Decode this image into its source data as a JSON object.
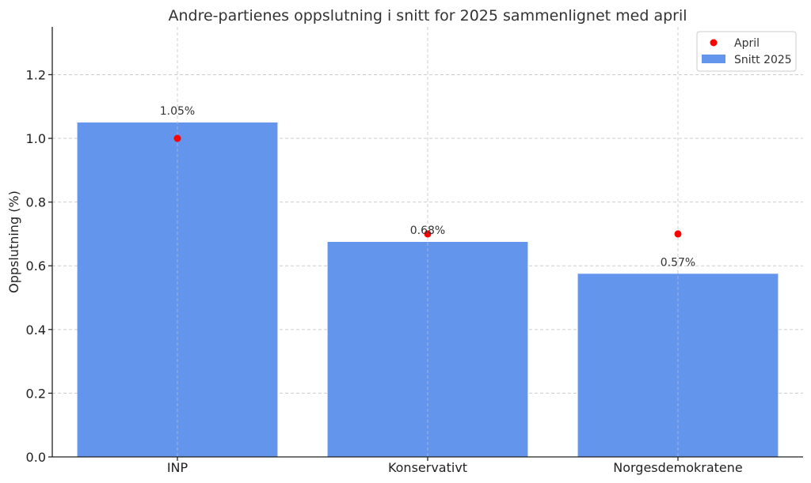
{
  "chart_data": {
    "type": "bar",
    "title": "Andre-partienes oppslutning i snitt for 2025 sammenlignet med april",
    "xlabel": "",
    "ylabel": "Oppslutning (%)",
    "ylim": [
      0,
      1.35
    ],
    "yticks": [
      0.0,
      0.2,
      0.4,
      0.6,
      0.8,
      1.0,
      1.2
    ],
    "ytick_labels": [
      "0.0",
      "0.2",
      "0.4",
      "0.6",
      "0.8",
      "1.0",
      "1.2"
    ],
    "categories": [
      "INP",
      "Konservativt",
      "Norgesdemokratene"
    ],
    "grid": true,
    "legend_position": "top-right",
    "series": [
      {
        "name": "Snitt 2025",
        "kind": "bar",
        "color": "#6495ED",
        "values": [
          1.05,
          0.675,
          0.575
        ],
        "labels": [
          "1.05%",
          "0.68%",
          "0.57%"
        ]
      },
      {
        "name": "April",
        "kind": "point",
        "color": "#FF0000",
        "values": [
          1.0,
          0.7,
          0.7
        ]
      }
    ]
  }
}
